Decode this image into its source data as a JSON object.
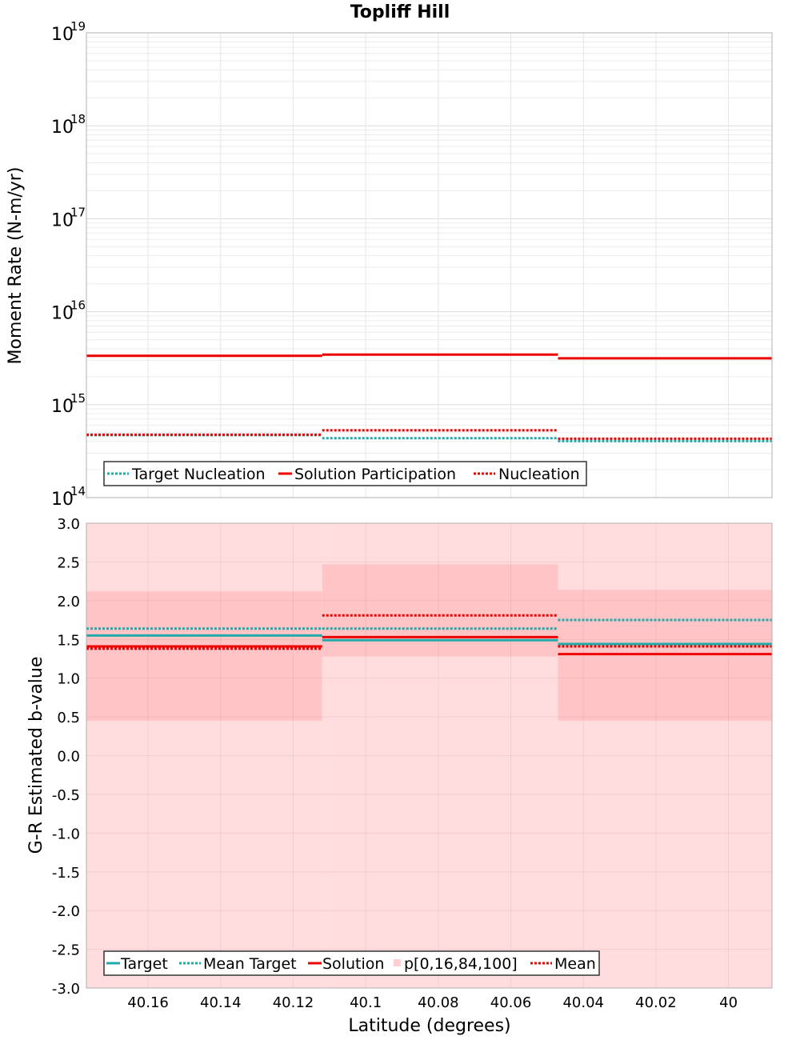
{
  "title": "Topliff Hill",
  "colors": {
    "target": "#22aaaa",
    "solution": "#ee0000",
    "band_outer": "#ffdcde",
    "band_inner": "#ffc4c5",
    "grid": "#e6e6e6",
    "frame": "#b0b0b0"
  },
  "chart_data": [
    {
      "type": "line",
      "name": "moment-rate",
      "ylabel": "Moment Rate (N-m/yr)",
      "xlabel": "",
      "yscale": "log",
      "ylim": [
        100000000000000.0,
        1e+19
      ],
      "xlim": [
        40.177,
        39.988
      ],
      "ytick_exponents": [
        "19",
        "18",
        "17",
        "16",
        "15",
        "14"
      ],
      "bins": [
        [
          40.177,
          40.112
        ],
        [
          40.112,
          40.047
        ],
        [
          40.047,
          39.988
        ]
      ],
      "series": [
        {
          "name": "Target Nucleation",
          "style": "dotted",
          "color": "target",
          "values": [
            470000000000000.0,
            435000000000000.0,
            405000000000000.0
          ]
        },
        {
          "name": "Solution Participation",
          "style": "solid",
          "color": "solution",
          "values": [
            3350000000000000.0,
            3450000000000000.0,
            3150000000000000.0
          ]
        },
        {
          "name": "Nucleation",
          "style": "dotted",
          "color": "solution",
          "values": [
            475000000000000.0,
            530000000000000.0,
            430000000000000.0
          ]
        }
      ],
      "legend": [
        "Target Nucleation",
        "Solution Participation",
        "Nucleation"
      ],
      "legend_position": "bottom-left"
    },
    {
      "type": "line",
      "name": "b-value",
      "ylabel": "G-R Estimated b-value",
      "xlabel": "Latitude (degrees)",
      "ylim": [
        -3.0,
        3.0
      ],
      "xlim": [
        40.177,
        39.988
      ],
      "yticks": [
        "3.0",
        "2.5",
        "2.0",
        "1.5",
        "1.0",
        "0.5",
        "0.0",
        "-0.5",
        "-1.0",
        "-1.5",
        "-2.0",
        "-2.5",
        "-3.0"
      ],
      "xticks": [
        "40.16",
        "40.14",
        "40.12",
        "40.1",
        "40.08",
        "40.06",
        "40.04",
        "40.02",
        "40"
      ],
      "bins": [
        [
          40.177,
          40.112
        ],
        [
          40.112,
          40.047
        ],
        [
          40.047,
          39.988
        ]
      ],
      "bands": {
        "p0": [
          -3.0,
          -3.0,
          -3.0
        ],
        "p16": [
          0.45,
          1.28,
          0.45
        ],
        "p84": [
          2.12,
          2.47,
          2.14
        ],
        "p100": [
          3.0,
          3.0,
          3.0
        ]
      },
      "series": [
        {
          "name": "Target",
          "style": "solid",
          "color": "target",
          "values": [
            1.55,
            1.49,
            1.44
          ]
        },
        {
          "name": "Mean Target",
          "style": "dotted",
          "color": "target",
          "values": [
            1.64,
            1.64,
            1.75
          ]
        },
        {
          "name": "Solution",
          "style": "solid",
          "color": "solution",
          "values": [
            1.41,
            1.53,
            1.31
          ]
        },
        {
          "name": "Mean",
          "style": "dotted",
          "color": "solution",
          "values": [
            1.38,
            1.81,
            1.41
          ]
        }
      ],
      "legend": [
        "Target",
        "Mean Target",
        "Solution",
        "p[0,16,84,100]",
        "Mean"
      ],
      "legend_position": "bottom-left"
    }
  ]
}
